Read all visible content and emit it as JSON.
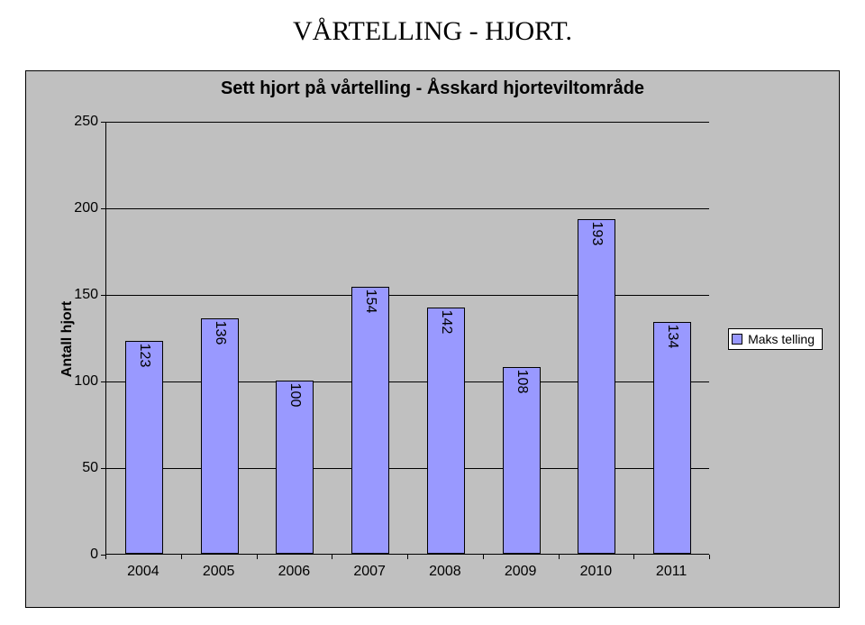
{
  "page_title": "VÅRTELLING - HJORT.",
  "chart": {
    "type": "bar",
    "title": "Sett hjort på vårtelling - Åsskard hjorteviltområde",
    "title_fontsize": 20,
    "title_font_family": "Arial",
    "title_font_weight": "bold",
    "y_axis_label": "Antall hjort",
    "y_axis_label_fontsize": 16,
    "background_color": "#c0c0c0",
    "plot_background_color": "#c0c0c0",
    "grid_color": "#000000",
    "axis_color": "#000000",
    "bar_color": "#9999ff",
    "bar_border_color": "#000000",
    "value_label_color": "#000000",
    "value_label_fontsize": 16,
    "value_label_rotation_deg": 90,
    "categories": [
      "2004",
      "2005",
      "2006",
      "2007",
      "2008",
      "2009",
      "2010",
      "2011"
    ],
    "values": [
      123,
      136,
      100,
      154,
      142,
      108,
      193,
      134
    ],
    "ylim": [
      0,
      250
    ],
    "ytick_step": 50,
    "y_ticks": [
      0,
      50,
      100,
      150,
      200,
      250
    ],
    "x_tick_label_fontsize": 16,
    "y_tick_label_fontsize": 16,
    "bar_width_ratio": 0.5,
    "legend": {
      "label": "Maks telling",
      "swatch_color": "#9999ff",
      "position": "right",
      "background": "#ffffff",
      "border_color": "#000000",
      "fontsize": 14
    }
  }
}
